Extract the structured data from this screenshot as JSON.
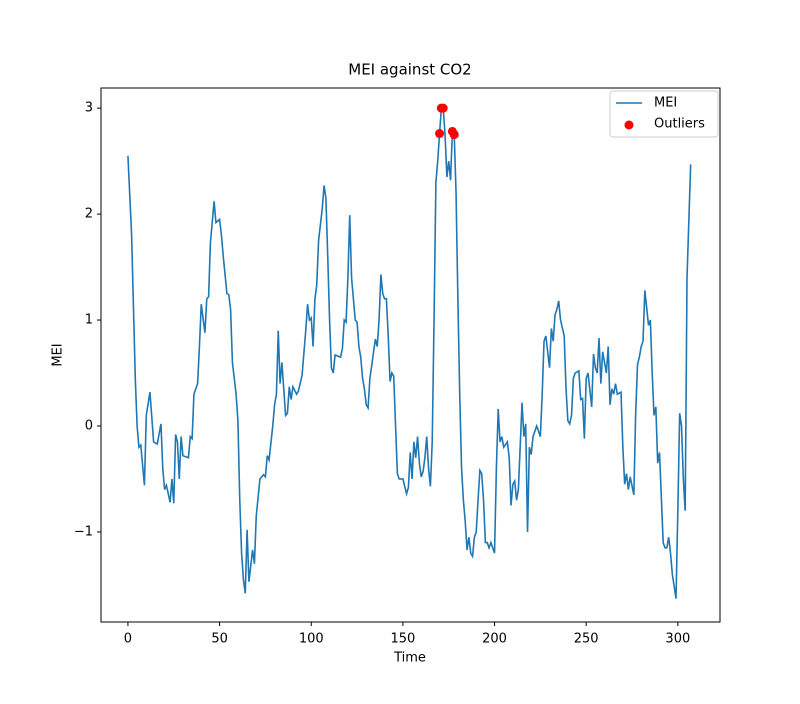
{
  "chart_data": {
    "type": "line",
    "title": "MEI against CO2",
    "xlabel": "Time",
    "ylabel": "MEI",
    "xlim": [
      -14.7,
      323
    ],
    "ylim": [
      -1.85,
      3.19
    ],
    "xticks": [
      0,
      50,
      100,
      150,
      200,
      250,
      300
    ],
    "yticks": [
      {
        "value": -1,
        "label": "−1"
      },
      0,
      1,
      2,
      3
    ],
    "legend": "upper right",
    "series": [
      {
        "name": "MEI",
        "type": "line",
        "color": "#1f77b4",
        "x": [
          0,
          2,
          4,
          5,
          6,
          7,
          9,
          10,
          12,
          14,
          16,
          18,
          19,
          20,
          21,
          23,
          24,
          25,
          26,
          27,
          28,
          29,
          30,
          33,
          34,
          35,
          36,
          38,
          39,
          40,
          42,
          43,
          44,
          45,
          47,
          48,
          50,
          51,
          52,
          54,
          55,
          56,
          57,
          59,
          60,
          61,
          62,
          63,
          64,
          65,
          66,
          68,
          69,
          70,
          72,
          74,
          75,
          76,
          77,
          79,
          80,
          81,
          82,
          83,
          84,
          85,
          86,
          87,
          88,
          89,
          90,
          92,
          93,
          95,
          97,
          98,
          99,
          100,
          101,
          102,
          103,
          104,
          106,
          107,
          108,
          109,
          110,
          111,
          112,
          113,
          116,
          117,
          118,
          119,
          120,
          121,
          122,
          123,
          124,
          125,
          126,
          127,
          128,
          129,
          130,
          131,
          132,
          133,
          134,
          135,
          136,
          137,
          138,
          139,
          140,
          141,
          142,
          143,
          144,
          145,
          146,
          147,
          148,
          150,
          151,
          152,
          153,
          154,
          155,
          156,
          157,
          158,
          159,
          160,
          161,
          162,
          163,
          164,
          165,
          166,
          167,
          168,
          169,
          170,
          171,
          172,
          173,
          174,
          175,
          176,
          177,
          178,
          179,
          180,
          181,
          182,
          183,
          184,
          185,
          186,
          187,
          188,
          189,
          190,
          191,
          192,
          193,
          194,
          195,
          196,
          197,
          198,
          200,
          201,
          202,
          203,
          204,
          205,
          207,
          208,
          209,
          210,
          211,
          212,
          213,
          215,
          216,
          217,
          218,
          219,
          220,
          221,
          223,
          224,
          225,
          226,
          227,
          228,
          230,
          231,
          232,
          233,
          234,
          235,
          236,
          238,
          239,
          240,
          241,
          242,
          243,
          244,
          246,
          247,
          248,
          249,
          250,
          251,
          253,
          254,
          255,
          256,
          257,
          258,
          259,
          261,
          262,
          263,
          264,
          265,
          266,
          267,
          269,
          270,
          271,
          272,
          273,
          274,
          276,
          277,
          278,
          279,
          280,
          281,
          282,
          284,
          285,
          286,
          287,
          288,
          289,
          290,
          292,
          293,
          294,
          295,
          296,
          297,
          299,
          300,
          301,
          302,
          303,
          304,
          305,
          307
        ],
        "values": [
          2.55,
          1.8,
          0.45,
          0.0,
          -0.2,
          -0.18,
          -0.56,
          0.1,
          0.32,
          -0.15,
          -0.17,
          0.02,
          -0.4,
          -0.6,
          -0.56,
          -0.72,
          -0.5,
          -0.73,
          -0.08,
          -0.15,
          -0.5,
          -0.1,
          -0.28,
          -0.3,
          -0.1,
          -0.12,
          0.3,
          0.4,
          0.75,
          1.15,
          0.88,
          1.2,
          1.22,
          1.73,
          2.12,
          1.92,
          1.95,
          1.8,
          1.6,
          1.25,
          1.24,
          1.1,
          0.6,
          0.3,
          0.05,
          -0.7,
          -1.2,
          -1.45,
          -1.58,
          -0.98,
          -1.47,
          -1.17,
          -1.3,
          -0.85,
          -0.5,
          -0.46,
          -0.48,
          -0.28,
          -0.32,
          0.0,
          0.2,
          0.3,
          0.9,
          0.4,
          0.6,
          0.35,
          0.1,
          0.12,
          0.37,
          0.25,
          0.37,
          0.3,
          0.33,
          0.48,
          0.9,
          1.15,
          1.0,
          1.02,
          0.75,
          1.2,
          1.33,
          1.75,
          2.05,
          2.27,
          2.15,
          1.6,
          1.0,
          0.55,
          0.5,
          0.67,
          0.65,
          0.73,
          1.0,
          0.98,
          1.4,
          1.99,
          1.4,
          1.2,
          1.0,
          0.98,
          0.75,
          0.65,
          0.45,
          0.35,
          0.2,
          0.17,
          0.45,
          0.57,
          0.7,
          0.82,
          0.75,
          1.0,
          1.43,
          1.25,
          1.2,
          1.2,
          0.85,
          0.42,
          0.5,
          0.47,
          0.0,
          -0.45,
          -0.5,
          -0.5,
          -0.57,
          -0.64,
          -0.58,
          -0.25,
          -0.5,
          -0.15,
          -0.3,
          -0.1,
          -0.35,
          -0.48,
          -0.43,
          -0.3,
          -0.1,
          -0.4,
          -0.57,
          -0.15,
          1.0,
          2.3,
          2.5,
          2.76,
          3.0,
          3.0,
          2.75,
          2.35,
          2.5,
          2.32,
          2.78,
          2.75,
          2.2,
          1.2,
          0.3,
          -0.4,
          -0.7,
          -0.9,
          -1.17,
          -1.05,
          -1.2,
          -1.23,
          -1.05,
          -1.0,
          -0.7,
          -0.42,
          -0.45,
          -0.7,
          -1.1,
          -1.1,
          -1.15,
          -1.1,
          -1.2,
          -0.4,
          0.16,
          -0.15,
          -0.1,
          -0.2,
          -0.15,
          -0.3,
          -0.75,
          -0.55,
          -0.52,
          -0.7,
          -0.6,
          0.22,
          -0.1,
          0.02,
          -1.0,
          -0.2,
          -0.27,
          -0.1,
          0.0,
          -0.05,
          -0.1,
          0.3,
          0.8,
          0.85,
          0.55,
          0.92,
          0.8,
          1.05,
          1.1,
          1.18,
          1.0,
          0.85,
          0.35,
          0.05,
          0.02,
          0.1,
          0.45,
          0.5,
          0.52,
          0.25,
          0.26,
          -0.12,
          0.45,
          0.5,
          0.18,
          0.68,
          0.55,
          0.5,
          0.83,
          0.4,
          0.7,
          0.5,
          0.75,
          0.2,
          0.35,
          0.3,
          0.4,
          0.3,
          0.32,
          -0.2,
          -0.55,
          -0.45,
          -0.6,
          -0.48,
          -0.65,
          0.12,
          0.58,
          0.65,
          0.75,
          0.8,
          1.28,
          0.95,
          1.0,
          0.5,
          0.1,
          0.18,
          -0.35,
          -0.25,
          -1.1,
          -1.15,
          -1.15,
          -1.05,
          -1.2,
          -1.4,
          -1.63,
          -0.8,
          0.12,
          0.0,
          -0.5,
          -0.8,
          1.4,
          2.47
        ]
      },
      {
        "name": "Outliers",
        "type": "scatter",
        "color": "#ff0000",
        "x": [
          170,
          171,
          172,
          177,
          178
        ],
        "values": [
          2.76,
          3.0,
          3.0,
          2.78,
          2.75
        ]
      }
    ]
  }
}
